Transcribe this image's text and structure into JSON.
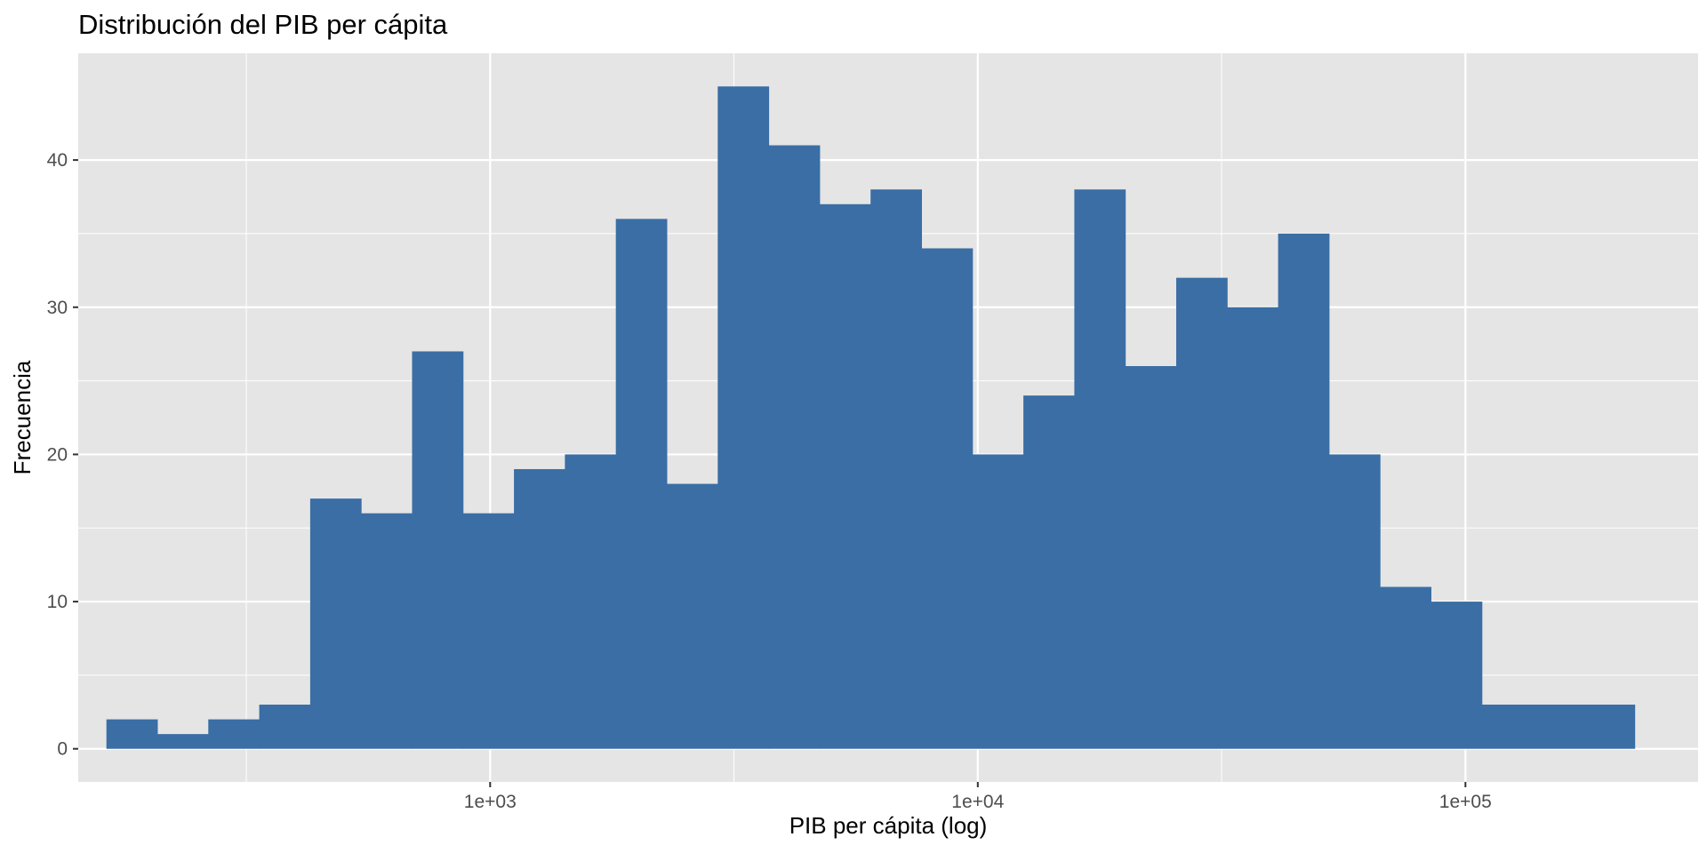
{
  "chart_data": {
    "type": "bar",
    "subtype": "histogram",
    "title": "Distribución del PIB per cápita",
    "xlabel": "PIB per cápita (log)",
    "ylabel": "Frecuencia",
    "x_scale": "log10",
    "x_ticks": [
      {
        "value": 1000,
        "label": "1e+03"
      },
      {
        "value": 10000,
        "label": "1e+04"
      },
      {
        "value": 100000,
        "label": "1e+05"
      }
    ],
    "y_ticks": [
      0,
      10,
      20,
      30,
      40
    ],
    "xlim": [
      143,
      300000
    ],
    "ylim": [
      -2.25,
      47.25
    ],
    "grid": true,
    "bar_color": "#3A6EA5",
    "bins_log10_start": 2.2131,
    "bins_log10_width": 0.104467,
    "values": [
      2,
      1,
      2,
      3,
      17,
      16,
      27,
      16,
      19,
      20,
      36,
      18,
      45,
      41,
      37,
      38,
      34,
      20,
      24,
      38,
      26,
      32,
      30,
      35,
      20,
      11,
      10,
      3,
      3,
      3
    ]
  },
  "colors": {
    "panel_background": "#E5E5E5",
    "grid_major": "#FFFFFF",
    "tick_text": "#4D4D4D"
  }
}
